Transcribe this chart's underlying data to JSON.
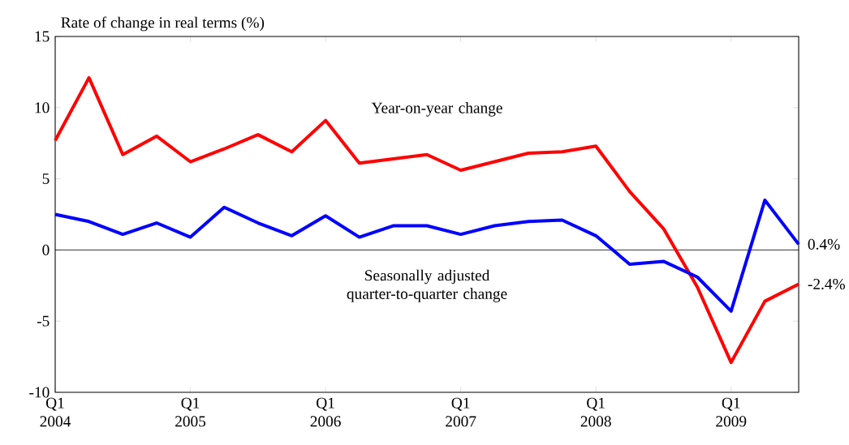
{
  "chart_data": {
    "type": "line",
    "ylabel": "Rate of change in real terms (%)",
    "categories": [
      "Q1 2004",
      null,
      null,
      null,
      "Q1 2005",
      null,
      null,
      null,
      "Q1 2006",
      null,
      null,
      null,
      "Q1 2007",
      null,
      null,
      null,
      "Q1 2008",
      null,
      null,
      null,
      "Q1 2009",
      null,
      null
    ],
    "series": [
      {
        "name": "Year-on-year change",
        "color": "#ff0000",
        "values": [
          7.7,
          12.1,
          6.7,
          8.0,
          6.2,
          7.1,
          8.1,
          6.9,
          9.1,
          6.1,
          6.4,
          6.7,
          5.6,
          6.2,
          6.8,
          6.9,
          7.3,
          4.1,
          1.5,
          -2.6,
          -7.9,
          -3.6,
          -2.4
        ],
        "value_labels": [
          null,
          null,
          null,
          null,
          null,
          null,
          null,
          null,
          null,
          null,
          null,
          null,
          null,
          null,
          null,
          null,
          null,
          null,
          null,
          null,
          null,
          null,
          "-2.4%"
        ]
      },
      {
        "name": "Seasonally adjusted quarter-to-quarter change",
        "color": "#0000ff",
        "values": [
          2.5,
          2.0,
          1.1,
          1.9,
          0.9,
          3.0,
          1.9,
          1.0,
          2.4,
          0.9,
          1.7,
          1.7,
          1.1,
          1.7,
          2.0,
          2.1,
          1.0,
          -1.0,
          -0.8,
          -1.9,
          -4.3,
          3.5,
          0.4
        ],
        "value_labels": [
          null,
          null,
          null,
          null,
          null,
          null,
          null,
          null,
          null,
          null,
          null,
          null,
          null,
          null,
          null,
          null,
          null,
          null,
          null,
          null,
          null,
          null,
          "0.4%"
        ]
      }
    ],
    "ylim": [
      -10,
      15
    ],
    "yticks": [
      -10,
      -5,
      0,
      5,
      10,
      15
    ],
    "ref_lines": [
      {
        "axis": "y",
        "value": 0,
        "color": "#000000"
      }
    ]
  }
}
